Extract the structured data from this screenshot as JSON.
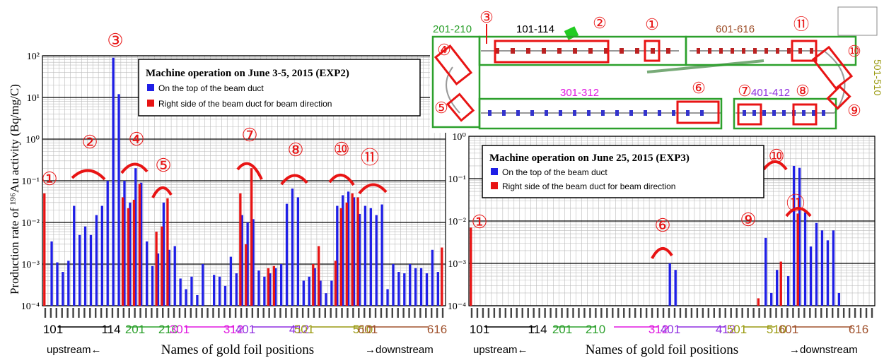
{
  "colors": {
    "top": "#1f1fe6",
    "right": "#e81414",
    "grid_major": "#000000",
    "grid_minor": "#bbbbbb",
    "annot": "#e81414",
    "group_green": "#2ca02c"
  },
  "chart_data": [
    {
      "type": "bar",
      "log_scale": true,
      "ylim": [
        0.0001,
        100
      ],
      "ylabel": "Production rate of ¹⁹⁶Au activity  (Bq/mg/C)",
      "xlabel": "Names of gold foil positions",
      "upstream_label": "upstream←",
      "downstream_label": "→downstream",
      "yticks": [
        "10⁻⁴",
        "10⁻³",
        "10⁻²",
        "10⁻¹",
        "10⁰",
        "10¹",
        "10²"
      ],
      "legend": {
        "title": "Machine operation on June 3-5, 2015 (EXP2)",
        "entries": [
          "On the top of the beam duct",
          "Right side of the beam duct for beam direction"
        ]
      },
      "group_labels": [
        "101",
        "114",
        "201",
        "210",
        "301",
        "312",
        "401",
        "412",
        "501",
        "510",
        "601",
        "616"
      ],
      "series": [
        {
          "name": "On the top of the beam duct",
          "points": [
            [
              1,
              0.0035
            ],
            [
              2,
              0.0011
            ],
            [
              3,
              0.00065
            ],
            [
              4,
              0.0012
            ],
            [
              5,
              0.025
            ],
            [
              6,
              0.005
            ],
            [
              7,
              0.008
            ],
            [
              8,
              0.005
            ],
            [
              9,
              0.015
            ],
            [
              10,
              0.025
            ],
            [
              11,
              0.1
            ],
            [
              12,
              90
            ],
            [
              13,
              12
            ],
            [
              14,
              0.1
            ],
            [
              15,
              0.03
            ],
            [
              16,
              0.2
            ],
            [
              17,
              0.09
            ],
            [
              18,
              0.0035
            ],
            [
              19,
              0.0009
            ],
            [
              20,
              0.0018
            ],
            [
              21,
              0.03
            ],
            [
              22,
              0.0022
            ],
            [
              23,
              0.0027
            ],
            [
              24,
              0.00045
            ],
            [
              25,
              0.00025
            ],
            [
              26,
              0.0005
            ],
            [
              27,
              0.00018
            ],
            [
              28,
              0.001
            ],
            [
              29,
              0.0001
            ],
            [
              30,
              0.00055
            ],
            [
              31,
              0.0005
            ],
            [
              32,
              0.0003
            ],
            [
              33,
              0.0015
            ],
            [
              34,
              0.0006
            ],
            [
              35,
              0.015
            ],
            [
              36,
              0.01
            ],
            [
              37,
              0.012
            ],
            [
              38,
              0.0007
            ],
            [
              39,
              0.0005
            ],
            [
              40,
              0.0006
            ],
            [
              41,
              0.0008
            ],
            [
              42,
              0.001
            ],
            [
              43,
              0.028
            ],
            [
              44,
              0.065
            ],
            [
              45,
              0.04
            ],
            [
              46,
              0.0004
            ],
            [
              47,
              0.0005
            ],
            [
              48,
              0.0008
            ],
            [
              49,
              0.0004
            ],
            [
              50,
              0.0002
            ],
            [
              51,
              0.0004
            ],
            [
              52,
              0.025
            ],
            [
              53,
              0.045
            ],
            [
              54,
              0.055
            ],
            [
              55,
              0.04
            ],
            [
              56,
              0.016
            ],
            [
              57,
              0.025
            ],
            [
              58,
              0.022
            ],
            [
              59,
              0.015
            ],
            [
              60,
              0.027
            ],
            [
              61,
              0.00025
            ],
            [
              62,
              0.001
            ],
            [
              63,
              0.00065
            ],
            [
              64,
              0.0006
            ],
            [
              65,
              0.001
            ],
            [
              66,
              0.0008
            ],
            [
              67,
              0.0008
            ],
            [
              68,
              0.0006
            ],
            [
              69,
              0.0022
            ],
            [
              70,
              0.00065
            ]
          ]
        },
        {
          "name": "Right side of the beam duct for beam direction",
          "points": [
            [
              0,
              0.05
            ],
            [
              14,
              0.04
            ],
            [
              15,
              0.022
            ],
            [
              16,
              0.035
            ],
            [
              17,
              0.085
            ],
            [
              20,
              0.006
            ],
            [
              21,
              0.008
            ],
            [
              22,
              0.038
            ],
            [
              35,
              0.05
            ],
            [
              36,
              0.003
            ],
            [
              37,
              0.2
            ],
            [
              40,
              0.0008
            ],
            [
              41,
              0.0009
            ],
            [
              48,
              0.001
            ],
            [
              49,
              0.0027
            ],
            [
              52,
              0.0012
            ],
            [
              53,
              0.022
            ],
            [
              54,
              0.03
            ],
            [
              55,
              0.05
            ],
            [
              56,
              0.04
            ],
            [
              71,
              0.0025
            ]
          ]
        }
      ],
      "annotations": [
        "①",
        "②",
        "③",
        "④",
        "⑤",
        "⑦",
        "⑧",
        "⑩",
        "⑪"
      ]
    },
    {
      "type": "bar",
      "log_scale": true,
      "ylim": [
        0.0001,
        1
      ],
      "ylabel": "",
      "xlabel": "Names of gold foil positions",
      "upstream_label": "upstream←",
      "downstream_label": "→downstream",
      "yticks": [
        "10⁻⁴",
        "10⁻³",
        "10⁻²",
        "10⁻¹",
        "10⁰"
      ],
      "legend": {
        "title": "Machine operation on June 25, 2015 (EXP3)",
        "entries": [
          "On the top of the beam duct",
          "Right side of the beam duct for beam direction"
        ]
      },
      "group_labels": [
        "101",
        "114",
        "201",
        "210",
        "312",
        "401",
        "412",
        "501",
        "510",
        "601",
        "616"
      ],
      "series": [
        {
          "name": "On the top of the beam duct",
          "points": [
            [
              35,
              0.001
            ],
            [
              36,
              0.0007
            ],
            [
              52,
              0.004
            ],
            [
              53,
              0.0002
            ],
            [
              54,
              0.0007
            ],
            [
              56,
              0.0005
            ],
            [
              57,
              0.2
            ],
            [
              58,
              0.18
            ],
            [
              59,
              0.016
            ],
            [
              60,
              0.0025
            ],
            [
              61,
              0.009
            ],
            [
              62,
              0.006
            ],
            [
              63,
              0.0035
            ],
            [
              64,
              0.006
            ],
            [
              65,
              0.0002
            ]
          ]
        },
        {
          "name": "Right side of the beam duct for beam direction",
          "points": [
            [
              0,
              0.007
            ],
            [
              51,
              0.00015
            ],
            [
              55,
              0.0011
            ],
            [
              58,
              0.015
            ]
          ]
        }
      ],
      "annotations": [
        "①",
        "⑥",
        "⑨",
        "⑩",
        "⑪"
      ]
    }
  ],
  "inset": {
    "groups": [
      "201-210",
      "101-114",
      "601-616",
      "301-312",
      "401-412",
      "501-510"
    ],
    "markers": [
      "①",
      "②",
      "③",
      "④",
      "⑤",
      "⑥",
      "⑦",
      "⑧",
      "⑨",
      "⑩",
      "⑪"
    ]
  }
}
